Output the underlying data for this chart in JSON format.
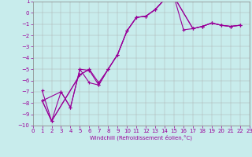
{
  "background_color": "#c8ecec",
  "line_color": "#990099",
  "xlabel": "Windchill (Refroidissement éolien,°C)",
  "xlim": [
    0,
    23
  ],
  "ylim": [
    -10,
    1
  ],
  "xticks": [
    0,
    1,
    2,
    3,
    4,
    5,
    6,
    7,
    8,
    9,
    10,
    11,
    12,
    13,
    14,
    15,
    16,
    17,
    18,
    19,
    20,
    21,
    22,
    23
  ],
  "yticks": [
    1,
    0,
    -1,
    -2,
    -3,
    -4,
    -5,
    -6,
    -7,
    -8,
    -9,
    -10
  ],
  "line1_x": [
    1,
    2,
    3,
    4,
    5,
    6,
    7,
    8,
    9,
    10,
    11,
    12,
    13,
    14,
    15,
    16,
    17,
    18,
    19,
    20,
    21,
    22
  ],
  "line1_y": [
    -6.9,
    -9.6,
    -7.0,
    -8.4,
    -5.0,
    -6.2,
    -6.4,
    -5.0,
    -3.7,
    -1.6,
    -0.4,
    -0.3,
    0.3,
    1.2,
    1.4,
    -1.5,
    -1.4,
    -1.2,
    -0.9,
    -1.1,
    -1.2,
    -1.1
  ],
  "line2_x": [
    1,
    3,
    4,
    5,
    6,
    7,
    8,
    9,
    10,
    11,
    12,
    13,
    14,
    15,
    17,
    18,
    19,
    20,
    21,
    22
  ],
  "line2_y": [
    -7.8,
    -7.0,
    -8.4,
    -5.0,
    -5.1,
    -6.4,
    -5.0,
    -3.7,
    -1.6,
    -0.4,
    -0.3,
    0.3,
    1.2,
    1.4,
    -1.4,
    -1.2,
    -0.9,
    -1.1,
    -1.2,
    -1.1
  ],
  "line3_x": [
    1,
    2,
    5,
    6,
    7,
    8,
    9,
    10,
    11,
    12,
    13,
    14,
    15,
    17,
    18,
    19,
    20,
    21,
    22
  ],
  "line3_y": [
    -7.8,
    -9.6,
    -5.5,
    -5.0,
    -6.2,
    -5.0,
    -3.7,
    -1.6,
    -0.4,
    -0.3,
    0.3,
    1.2,
    1.4,
    -1.4,
    -1.2,
    -0.9,
    -1.1,
    -1.2,
    -1.1
  ],
  "line4_x": [
    1,
    2,
    5,
    6
  ],
  "line4_y": [
    -7.8,
    -9.6,
    -5.5,
    -5.0
  ],
  "tick_fontsize": 5,
  "xlabel_fontsize": 5,
  "linewidth": 0.8,
  "markersize": 2.5
}
